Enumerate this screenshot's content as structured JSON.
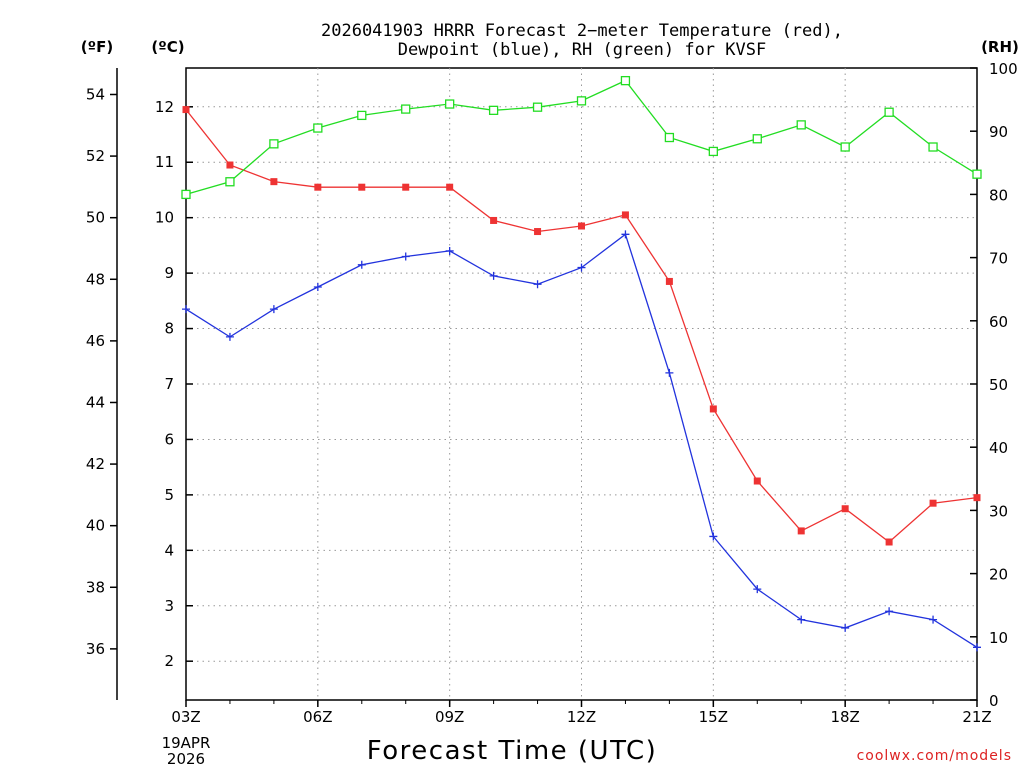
{
  "chart_data": {
    "type": "line",
    "title": "2026041903 HRRR Forecast 2−meter Temperature (red),",
    "subtitle": "Dewpoint (blue), RH (green) for KVSF",
    "xlabel": "Forecast Time (UTC)",
    "watermark": "coolwx.com/models",
    "date_label": [
      "19APR",
      "2026"
    ],
    "x_hours": [
      3,
      4,
      5,
      6,
      7,
      8,
      9,
      10,
      11,
      12,
      13,
      14,
      15,
      16,
      17,
      18,
      19,
      20,
      21
    ],
    "x_ticks": [
      {
        "hour": 3,
        "label": "03Z"
      },
      {
        "hour": 6,
        "label": "06Z"
      },
      {
        "hour": 9,
        "label": "09Z"
      },
      {
        "hour": 12,
        "label": "12Z"
      },
      {
        "hour": 15,
        "label": "15Z"
      },
      {
        "hour": 18,
        "label": "18Z"
      },
      {
        "hour": 21,
        "label": "21Z"
      }
    ],
    "axes": {
      "celsius": {
        "label": "(ºC)",
        "range": [
          1.3,
          12.7
        ],
        "ticks": [
          2,
          3,
          4,
          5,
          6,
          7,
          8,
          9,
          10,
          11,
          12
        ]
      },
      "fahrenheit": {
        "label": "(ºF)",
        "range": [
          34.34,
          54.86
        ],
        "ticks": [
          36,
          38,
          40,
          42,
          44,
          46,
          48,
          50,
          52,
          54
        ]
      },
      "rh": {
        "label": "(RH)",
        "range": [
          0,
          100
        ],
        "ticks": [
          0,
          10,
          20,
          30,
          40,
          50,
          60,
          70,
          80,
          90,
          100
        ]
      }
    },
    "series": [
      {
        "name": "2-meter Temperature",
        "unit": "C",
        "color": "#ee3333",
        "marker": "filled-square",
        "values": [
          11.95,
          10.95,
          10.65,
          10.55,
          10.55,
          10.55,
          10.55,
          9.95,
          9.75,
          9.85,
          10.05,
          8.85,
          6.55,
          5.25,
          4.35,
          4.75,
          4.15,
          4.85,
          4.95
        ]
      },
      {
        "name": "Dewpoint",
        "unit": "C",
        "color": "#2233dd",
        "marker": "plus",
        "values": [
          8.35,
          7.85,
          8.35,
          8.75,
          9.15,
          9.3,
          9.4,
          8.95,
          8.8,
          9.1,
          9.7,
          7.2,
          4.25,
          3.3,
          2.75,
          2.6,
          2.9,
          2.75,
          2.25
        ]
      },
      {
        "name": "RH",
        "unit": "%",
        "color": "#22dd22",
        "marker": "open-square",
        "values": [
          80,
          82,
          88,
          90.5,
          92.5,
          93.5,
          94.3,
          93.3,
          93.8,
          94.8,
          98,
          89,
          86.8,
          88.8,
          91,
          87.5,
          93,
          87.5,
          83.2
        ]
      }
    ]
  }
}
